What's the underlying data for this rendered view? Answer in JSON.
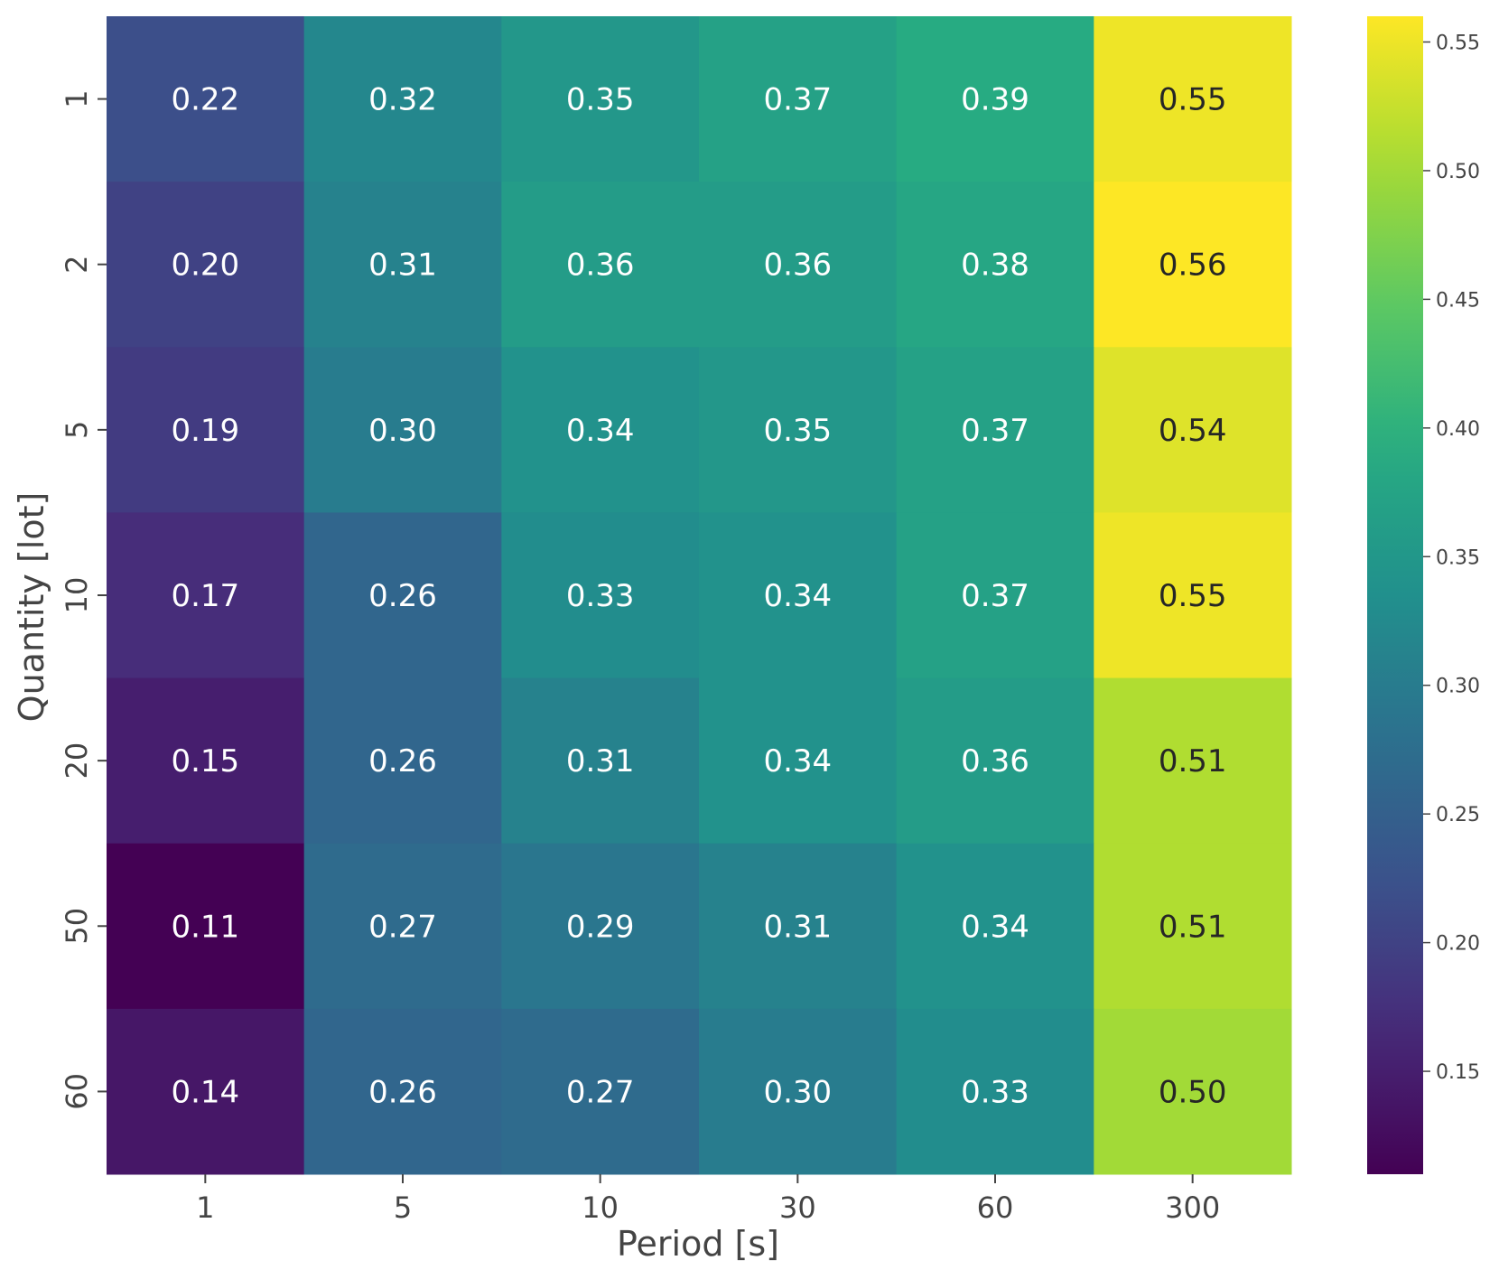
{
  "chart_data": {
    "type": "heatmap",
    "title": "",
    "xlabel": "Period [s]",
    "ylabel": "Quantity [lot]",
    "x_categories": [
      "1",
      "5",
      "10",
      "30",
      "60",
      "300"
    ],
    "y_categories": [
      "1",
      "2",
      "5",
      "10",
      "20",
      "50",
      "60"
    ],
    "values": [
      [
        0.22,
        0.32,
        0.35,
        0.37,
        0.39,
        0.55
      ],
      [
        0.2,
        0.31,
        0.36,
        0.36,
        0.38,
        0.56
      ],
      [
        0.19,
        0.3,
        0.34,
        0.35,
        0.37,
        0.54
      ],
      [
        0.17,
        0.26,
        0.33,
        0.34,
        0.37,
        0.55
      ],
      [
        0.15,
        0.26,
        0.31,
        0.34,
        0.36,
        0.51
      ],
      [
        0.11,
        0.27,
        0.29,
        0.31,
        0.34,
        0.51
      ],
      [
        0.14,
        0.26,
        0.27,
        0.3,
        0.33,
        0.5
      ]
    ],
    "annotations_format": "0.00",
    "colormap": "viridis",
    "colorbar": {
      "range": [
        0.11,
        0.56
      ],
      "ticks": [
        "0.15",
        "0.20",
        "0.25",
        "0.30",
        "0.35",
        "0.40",
        "0.45",
        "0.50",
        "0.55"
      ]
    },
    "colors": {
      "light_text": "#ffffff",
      "dark_text": "#262626",
      "axis_text": "#444444"
    }
  }
}
